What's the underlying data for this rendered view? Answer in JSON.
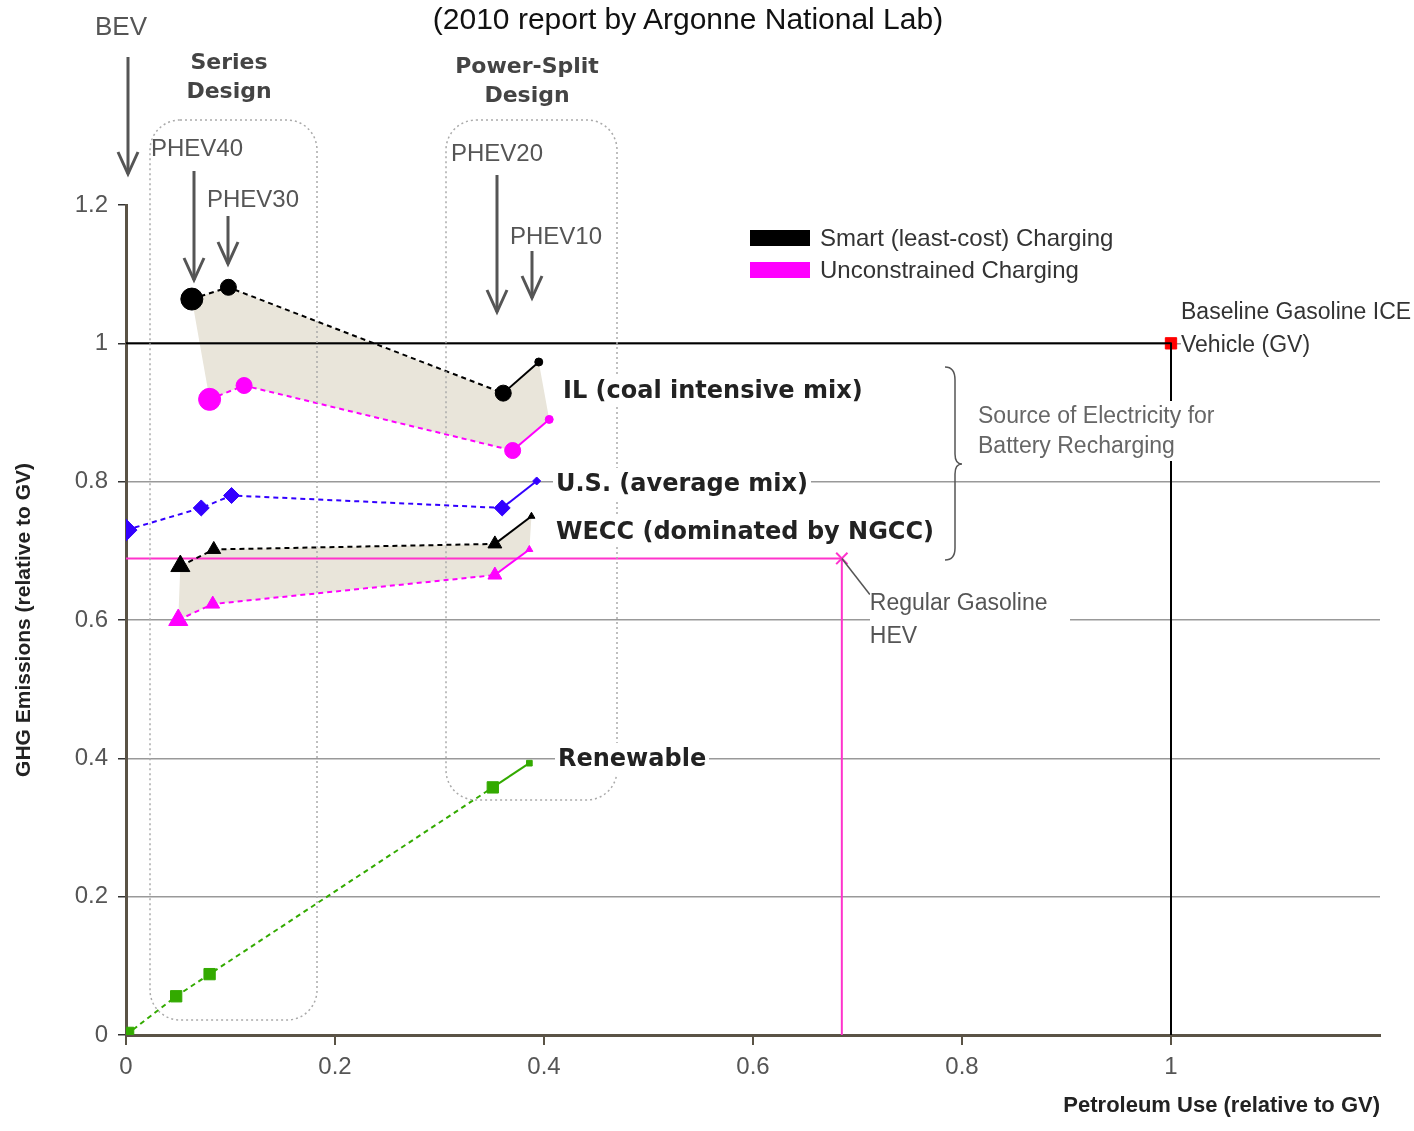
{
  "chart_data": {
    "type": "scatter",
    "title": "(2010 report by Argonne National Lab)",
    "xlabel": "Petroleum Use (relative to GV)",
    "ylabel": "GHG Emissions (relative to GV)",
    "xlim": [
      0,
      1.2
    ],
    "ylim": [
      0,
      1.2
    ],
    "xticks": [
      0,
      0.2,
      0.4,
      0.6,
      0.8,
      1
    ],
    "yticks": [
      0,
      0.2,
      0.4,
      0.6,
      0.8,
      1,
      1.2
    ],
    "grid": "y",
    "legend": "top right",
    "series": [
      {
        "name": "Smart (least-cost) Charging",
        "type": "line",
        "color": "#000000",
        "marker": "circle",
        "line_style": "dashed",
        "x": [
          0.063,
          0.098,
          0.361,
          0.395
        ],
        "values": [
          1.064,
          1.081,
          0.928,
          0.973
        ]
      },
      {
        "name": "Unconstrained Charging",
        "type": "line",
        "color": "#ff00ff",
        "marker": "circle",
        "line_style": "dashed",
        "x": [
          0.08,
          0.113,
          0.37,
          0.405
        ],
        "values": [
          0.919,
          0.939,
          0.845,
          0.89
        ]
      },
      {
        "type": "line",
        "color": "#3300ff",
        "marker": "diamond",
        "line_style": "dashed",
        "x": [
          0,
          0.072,
          0.101,
          0.36,
          0.393
        ],
        "values": [
          0.73,
          0.762,
          0.78,
          0.762,
          0.801
        ]
      },
      {
        "type": "line",
        "color": "#000000",
        "marker": "triangle",
        "line_style": "dashed",
        "x": [
          0.052,
          0.084,
          0.353,
          0.388
        ],
        "values": [
          0.678,
          0.702,
          0.71,
          0.75
        ]
      },
      {
        "type": "line",
        "color": "#ff00ff",
        "marker": "triangle",
        "line_style": "dashed",
        "x": [
          0.05,
          0.083,
          0.353,
          0.386
        ],
        "values": [
          0.6,
          0.623,
          0.665,
          0.702
        ]
      },
      {
        "type": "line",
        "color": "#33aa00",
        "marker": "square",
        "line_style": "dashed",
        "x": [
          0,
          0.048,
          0.08,
          0.351,
          0.386
        ],
        "values": [
          0,
          0.056,
          0.088,
          0.358,
          0.393
        ]
      },
      {
        "type": "line",
        "color": "#ff33cc",
        "marker": "none",
        "line_style": "solid",
        "x": [
          0,
          0.685,
          0.685
        ],
        "values": [
          0.689,
          0.689,
          0
        ]
      },
      {
        "type": "scatter",
        "color": "#ff33cc",
        "marker": "cross",
        "x": [
          0.685
        ],
        "values": [
          0.689
        ]
      },
      {
        "type": "line",
        "color": "#000000",
        "marker": "none",
        "line_style": "solid",
        "x": [
          0,
          1,
          1
        ],
        "values": [
          1,
          1,
          0
        ]
      },
      {
        "type": "scatter",
        "color": "#ff0000",
        "marker": "square",
        "x": [
          1
        ],
        "values": [
          1
        ]
      }
    ],
    "annotations": [
      "BEV",
      "Series Design",
      "PHEV40",
      "PHEV30",
      "Power-Split Design",
      "PHEV20",
      "PHEV10",
      "Source of Electricity for Battery Recharging",
      "IL (coal intensive mix)",
      "U.S. (average mix)",
      "WECC (dominated by NGCC)",
      "Renewable",
      {
        "text": "Regular Gasoline HEV",
        "x": 0.685,
        "y": 0.689
      },
      {
        "text": "Baseline Gasoline ICE Vehicle (GV)",
        "x": 1,
        "y": 1
      }
    ]
  }
}
